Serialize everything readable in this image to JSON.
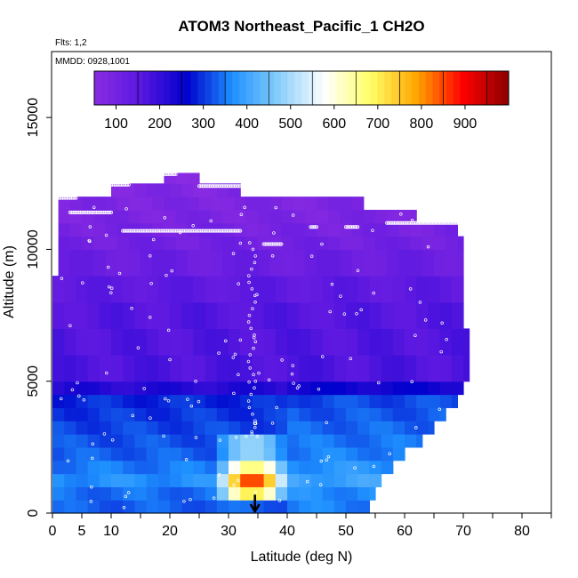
{
  "chart_data": {
    "type": "heatmap",
    "title": "ATOM3 Northeast_Pacific_1 CH2O",
    "flights_note": "Flts: 1,2",
    "dates_note": "MMDD: 0928,1001",
    "xlabel": "Latitude (deg N)",
    "ylabel": "Altitude (m)",
    "xlim": [
      0,
      85
    ],
    "ylim": [
      0,
      17500
    ],
    "x_ticks": [
      0,
      5,
      10,
      20,
      30,
      40,
      50,
      60,
      70,
      80
    ],
    "x_minor_ticks": [
      15,
      25,
      35,
      45,
      55,
      65,
      75,
      85
    ],
    "y_ticks": [
      0,
      5000,
      10000,
      15000
    ],
    "colorbar": {
      "min": 50,
      "max": 1000,
      "ticks": [
        100,
        200,
        300,
        400,
        500,
        600,
        700,
        800,
        900
      ],
      "colors": [
        "#8a2be2",
        "#5a17e0",
        "#0000cc",
        "#1e90ff",
        "#87cefa",
        "#ffffff",
        "#ffff66",
        "#ffa500",
        "#ff0000",
        "#8b0000"
      ]
    },
    "arrow_marker": {
      "latitude": 34.5,
      "altitude_from": 700,
      "altitude_to": 0
    },
    "layers": [
      {
        "alt_from": 0,
        "alt_to": 500,
        "lat_from": 0,
        "lat_to": 54,
        "base": 330
      },
      {
        "alt_from": 500,
        "alt_to": 1000,
        "lat_from": 0,
        "lat_to": 55,
        "base": 340
      },
      {
        "alt_from": 1000,
        "alt_to": 1500,
        "lat_from": 0,
        "lat_to": 56,
        "base": 370
      },
      {
        "alt_from": 1500,
        "alt_to": 2000,
        "lat_from": 0,
        "lat_to": 58,
        "base": 350
      },
      {
        "alt_from": 2000,
        "alt_to": 2500,
        "lat_from": 0,
        "lat_to": 60,
        "base": 330
      },
      {
        "alt_from": 2500,
        "alt_to": 3000,
        "lat_from": 0,
        "lat_to": 63,
        "base": 320
      },
      {
        "alt_from": 3000,
        "alt_to": 3500,
        "lat_from": 0,
        "lat_to": 65,
        "base": 310
      },
      {
        "alt_from": 3500,
        "alt_to": 4000,
        "lat_from": 0,
        "lat_to": 67,
        "base": 300
      },
      {
        "alt_from": 4000,
        "alt_to": 4500,
        "lat_from": 0,
        "lat_to": 69,
        "base": 290
      },
      {
        "alt_from": 4500,
        "alt_to": 5000,
        "lat_from": 0,
        "lat_to": 70,
        "base": 220
      },
      {
        "alt_from": 5000,
        "alt_to": 6000,
        "lat_from": 0,
        "lat_to": 71,
        "base": 170
      },
      {
        "alt_from": 6000,
        "alt_to": 7000,
        "lat_from": 0,
        "lat_to": 71,
        "base": 165
      },
      {
        "alt_from": 7000,
        "alt_to": 8000,
        "lat_from": 0,
        "lat_to": 70,
        "base": 160
      },
      {
        "alt_from": 8000,
        "alt_to": 9000,
        "lat_from": 0,
        "lat_to": 70,
        "base": 145
      },
      {
        "alt_from": 9000,
        "alt_to": 10000,
        "lat_from": 1,
        "lat_to": 70,
        "base": 120
      },
      {
        "alt_from": 10000,
        "alt_to": 10500,
        "lat_from": 1,
        "lat_to": 70,
        "base": 105
      },
      {
        "alt_from": 10500,
        "alt_to": 11000,
        "lat_from": 1,
        "lat_to": 69,
        "base": 95
      },
      {
        "alt_from": 11000,
        "alt_to": 11500,
        "lat_from": 1,
        "lat_to": 62,
        "base": 85
      },
      {
        "alt_from": 11500,
        "alt_to": 12000,
        "lat_from": 1,
        "lat_to": 53,
        "base": 80
      },
      {
        "alt_from": 12000,
        "alt_to": 12500,
        "lat_from": 10,
        "lat_to": 32,
        "base": 75
      },
      {
        "alt_from": 12500,
        "alt_to": 12900,
        "lat_from": 19,
        "lat_to": 25,
        "base": 70
      }
    ],
    "hotspot": {
      "lat_center": 34,
      "lat_halfwidth": 6,
      "alt_from": 700,
      "alt_to": 3000,
      "peak": 880,
      "peak_alt": 1200
    },
    "flight_tracks": [
      {
        "lat_from": 1,
        "lat_to": 4,
        "alt": 11950
      },
      {
        "lat_from": 3,
        "lat_to": 10,
        "alt": 11400
      },
      {
        "lat_from": 10,
        "lat_to": 13,
        "alt": 12450
      },
      {
        "lat_from": 19,
        "lat_to": 21,
        "alt": 12850
      },
      {
        "lat_from": 25,
        "lat_to": 32,
        "alt": 12400
      },
      {
        "lat_from": 12,
        "lat_to": 32,
        "alt": 10700
      },
      {
        "lat_from": 36,
        "lat_to": 39,
        "alt": 10200
      },
      {
        "lat_from": 44,
        "lat_to": 45,
        "alt": 10850
      },
      {
        "lat_from": 50,
        "lat_to": 52,
        "alt": 10850
      },
      {
        "lat_from": 57,
        "lat_to": 70,
        "alt": 11000
      },
      {
        "lat_from": 34.5,
        "lat_to": 34.6,
        "alt": 3400
      }
    ]
  }
}
